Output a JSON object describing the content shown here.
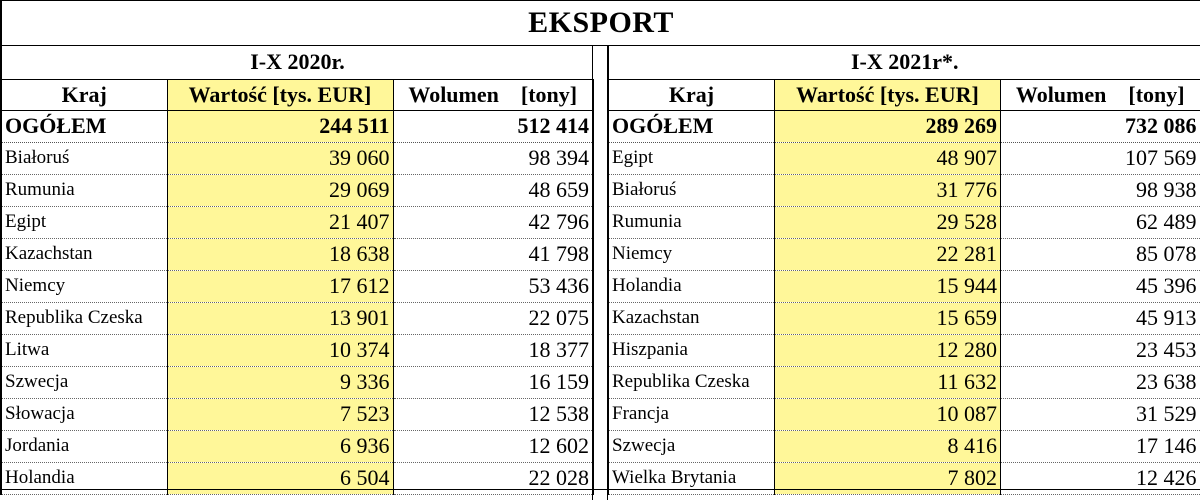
{
  "title": "EKSPORT",
  "columns": {
    "country": "Kraj",
    "value": "Wartość [tys. EUR]",
    "volume": "Wolumen    [tony]"
  },
  "panel_2020": {
    "period": "I-X 2020r.",
    "total": {
      "label": "OGÓŁEM",
      "value": "244 511",
      "volume": "512 414"
    },
    "rows": [
      {
        "country": "Białoruś",
        "value": "39 060",
        "volume": "98 394"
      },
      {
        "country": "Rumunia",
        "value": "29 069",
        "volume": "48 659"
      },
      {
        "country": "Egipt",
        "value": "21 407",
        "volume": "42 796"
      },
      {
        "country": "Kazachstan",
        "value": "18 638",
        "volume": "41 798"
      },
      {
        "country": "Niemcy",
        "value": "17 612",
        "volume": "53 436"
      },
      {
        "country": "Republika Czeska",
        "value": "13 901",
        "volume": "22 075"
      },
      {
        "country": "Litwa",
        "value": "10 374",
        "volume": "18 377"
      },
      {
        "country": "Szwecja",
        "value": "9 336",
        "volume": "16 159"
      },
      {
        "country": "Słowacja",
        "value": "7 523",
        "volume": "12 538"
      },
      {
        "country": "Jordania",
        "value": "6 936",
        "volume": "12 602"
      },
      {
        "country": "Holandia",
        "value": "6 504",
        "volume": "22 028"
      }
    ]
  },
  "panel_2021": {
    "period": "I-X 2021r*.",
    "total": {
      "label": "OGÓŁEM",
      "value": "289 269",
      "volume": "732 086"
    },
    "rows": [
      {
        "country": "Egipt",
        "value": "48 907",
        "volume": "107 569"
      },
      {
        "country": "Białoruś",
        "value": "31 776",
        "volume": "98 938"
      },
      {
        "country": "Rumunia",
        "value": "29 528",
        "volume": "62 489"
      },
      {
        "country": "Niemcy",
        "value": "22 281",
        "volume": "85 078"
      },
      {
        "country": "Holandia",
        "value": "15 944",
        "volume": "45 396"
      },
      {
        "country": "Kazachstan",
        "value": "15 659",
        "volume": "45 913"
      },
      {
        "country": "Hiszpania",
        "value": "12 280",
        "volume": "23 453"
      },
      {
        "country": "Republika Czeska",
        "value": "11 632",
        "volume": "23 638"
      },
      {
        "country": "Francja",
        "value": "10 087",
        "volume": "31 529"
      },
      {
        "country": "Szwecja",
        "value": "8 416",
        "volume": "17 146"
      },
      {
        "country": "Wielka Brytania",
        "value": "7 802",
        "volume": "12 426"
      }
    ]
  },
  "colors": {
    "value_highlight": "#fff799",
    "border": "#000000"
  }
}
